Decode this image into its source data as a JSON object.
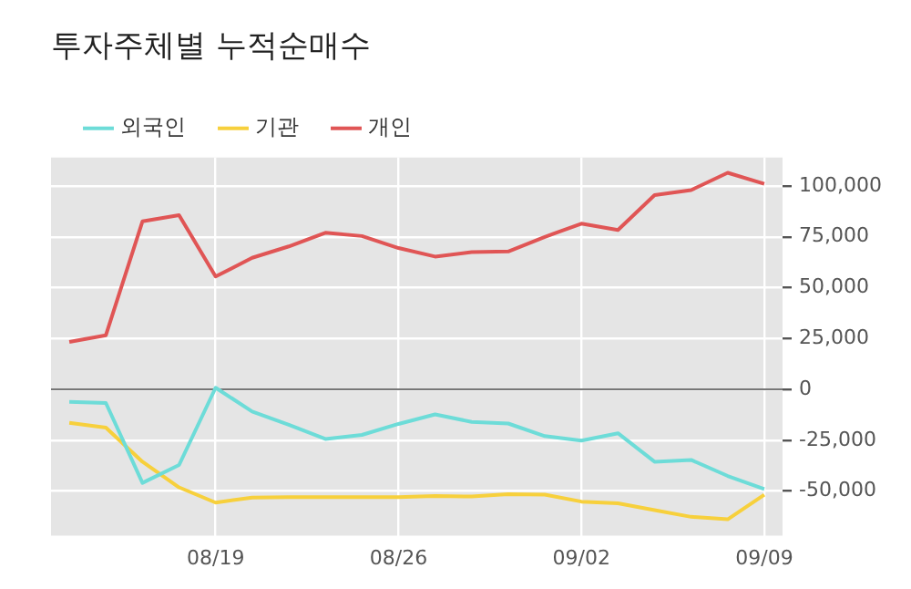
{
  "chart_data": {
    "type": "line",
    "title": "투자주체별 누적순매수",
    "categories": [
      null,
      null,
      null,
      null,
      "08/19",
      null,
      null,
      null,
      null,
      "08/26",
      null,
      null,
      null,
      null,
      "09/02",
      null,
      null,
      null,
      null,
      "09/09"
    ],
    "series": [
      {
        "name": "외국인",
        "color": "#6ddcd8",
        "values": [
          -6200,
          -6700,
          -46000,
          -37200,
          800,
          -10900,
          -17400,
          -24400,
          -22400,
          -17000,
          -12300,
          -16000,
          -16800,
          -23000,
          -25200,
          -21600,
          -35600,
          -34700,
          -42600,
          -49000
        ]
      },
      {
        "name": "기관",
        "color": "#f7d03c",
        "values": [
          -16500,
          -18800,
          -35600,
          -48200,
          -55700,
          -53200,
          -53000,
          -53000,
          -53000,
          -53000,
          -52400,
          -52700,
          -51500,
          -51800,
          -55200,
          -56000,
          -59400,
          -62700,
          -63900,
          -51800
        ]
      },
      {
        "name": "개인",
        "color": "#e05555",
        "values": [
          23300,
          26600,
          82600,
          85700,
          55500,
          64700,
          70300,
          77000,
          75400,
          69500,
          65300,
          67500,
          67800,
          75000,
          81500,
          78400,
          95500,
          98000,
          106500,
          101100
        ]
      }
    ],
    "ylim": [
      -72000,
      114000
    ],
    "yticks": [
      {
        "value": -50000,
        "label": "-50,000"
      },
      {
        "value": -25000,
        "label": "-25,000"
      },
      0,
      {
        "value": 25000,
        "label": "25,000"
      },
      {
        "value": 50000,
        "label": "50,000"
      },
      {
        "value": 75000,
        "label": "75,000"
      },
      {
        "value": 100000,
        "label": "100,000"
      }
    ],
    "ref_lines": [
      {
        "axis": "y",
        "value": 0,
        "color": "#777777"
      }
    ],
    "grid": true,
    "legend": "top left",
    "marker": "none",
    "line_style": "solid"
  }
}
